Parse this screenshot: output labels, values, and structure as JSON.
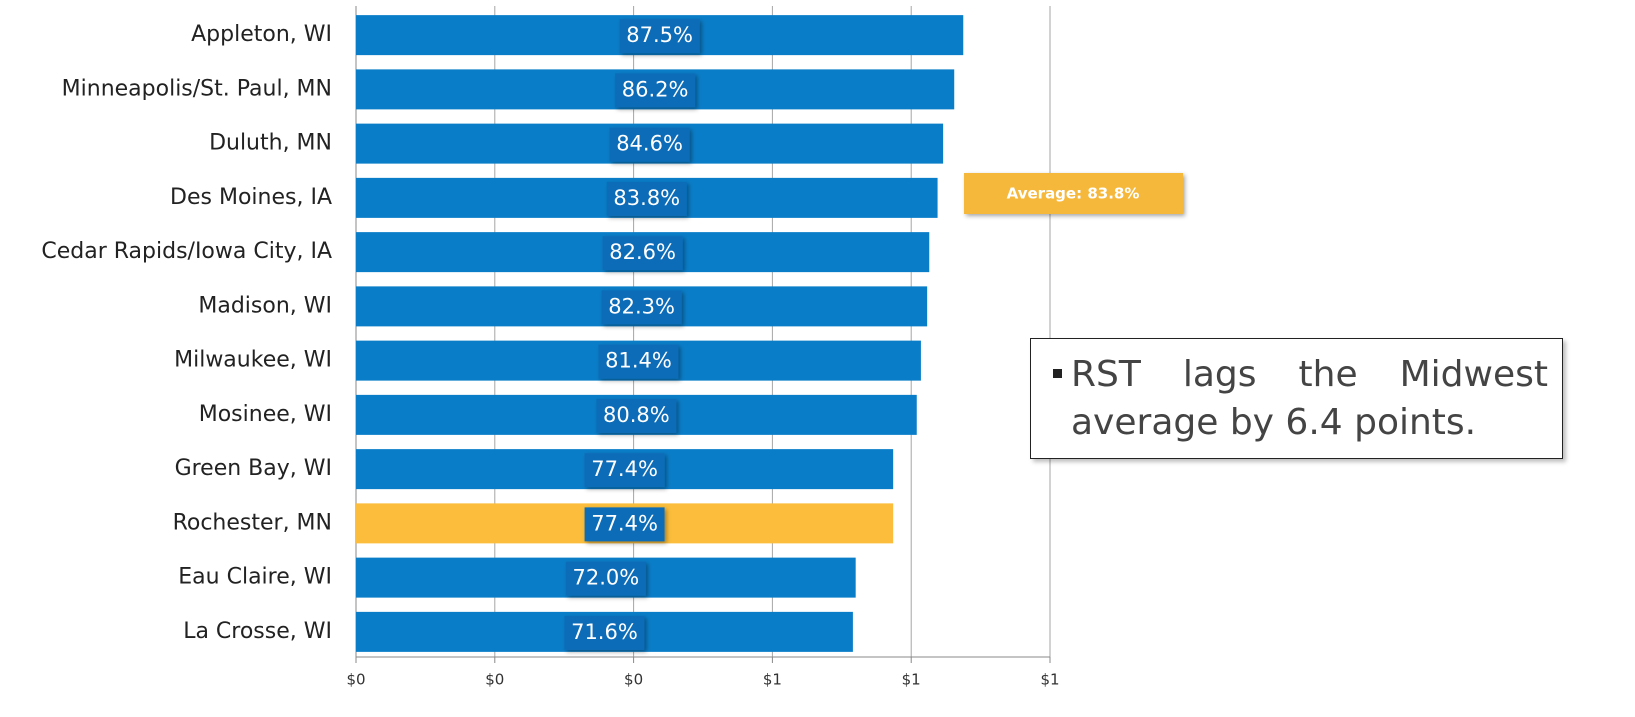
{
  "chart_data": {
    "type": "barh",
    "categories": [
      "Appleton, WI",
      "Minneapolis/St. Paul, MN",
      "Duluth, MN",
      "Des Moines, IA",
      "Cedar Rapids/Iowa City, IA",
      "Madison, WI",
      "Milwaukee, WI",
      "Mosinee, WI",
      "Green Bay, WI",
      "Rochester, MN",
      "Eau Claire, WI",
      "La Crosse, WI"
    ],
    "values": [
      0.875,
      0.862,
      0.846,
      0.838,
      0.826,
      0.823,
      0.814,
      0.808,
      0.774,
      0.774,
      0.72,
      0.716
    ],
    "value_labels": [
      "87.5%",
      "86.2%",
      "84.6%",
      "83.8%",
      "82.6%",
      "82.3%",
      "81.4%",
      "80.8%",
      "77.4%",
      "77.4%",
      "72.0%",
      "71.6%"
    ],
    "colors": [
      "#0a7dc8",
      "#0a7dc8",
      "#0a7dc8",
      "#0a7dc8",
      "#0a7dc8",
      "#0a7dc8",
      "#0a7dc8",
      "#0a7dc8",
      "#0a7dc8",
      "#fbbd3b",
      "#0a7dc8",
      "#0a7dc8"
    ],
    "xlim": [
      0,
      1
    ],
    "xticks": [
      {
        "value": 0,
        "label": "$0"
      },
      {
        "value": 0.2,
        "label": "$0"
      },
      {
        "value": 0.4,
        "label": "$0"
      },
      {
        "value": 0.6,
        "label": "$1"
      },
      {
        "value": 0.8,
        "label": "$1"
      },
      {
        "value": 1,
        "label": "$1"
      }
    ],
    "grid": true,
    "annotations": [
      "Average: 83.8%"
    ],
    "note": "RST lags the Midwest average by 6.4 points."
  }
}
